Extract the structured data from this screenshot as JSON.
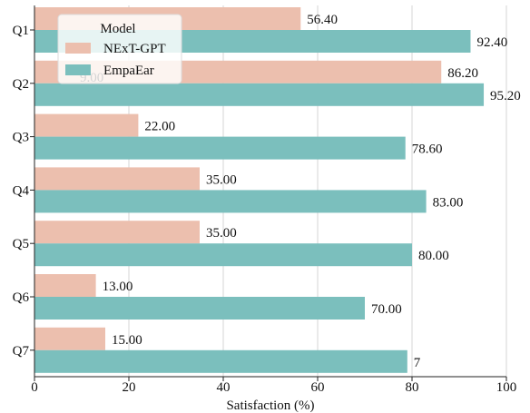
{
  "chart_data": {
    "type": "bar",
    "orientation": "horizontal",
    "categories": [
      "Q1",
      "Q2",
      "Q3",
      "Q4",
      "Q5",
      "Q6",
      "Q7"
    ],
    "series": [
      {
        "name": "NExT-GPT",
        "color": "#ecbfae",
        "values": [
          56.4,
          86.2,
          22.0,
          35.0,
          35.0,
          13.0,
          15.0
        ],
        "labels": [
          "56.40",
          "86.20",
          "22.00",
          "35.00",
          "35.00",
          "13.00",
          "15.00"
        ]
      },
      {
        "name": "EmpaEar",
        "color": "#7bbfbd",
        "values": [
          92.4,
          95.2,
          78.6,
          83.0,
          80.0,
          70.0,
          79.0
        ],
        "labels": [
          "92.40",
          "95.20",
          "78.60",
          "83.00",
          "80.00",
          "70.00",
          "7"
        ]
      }
    ],
    "xlabel": "Satisfaction (%)",
    "ylabel": "",
    "xlim": [
      0,
      100
    ],
    "xticks": [
      "0",
      "20",
      "40",
      "60",
      "80",
      "100"
    ],
    "grid": "vertical",
    "legend": {
      "title": "Model",
      "placement": "top-left"
    },
    "overlapping_text": "9.00"
  }
}
